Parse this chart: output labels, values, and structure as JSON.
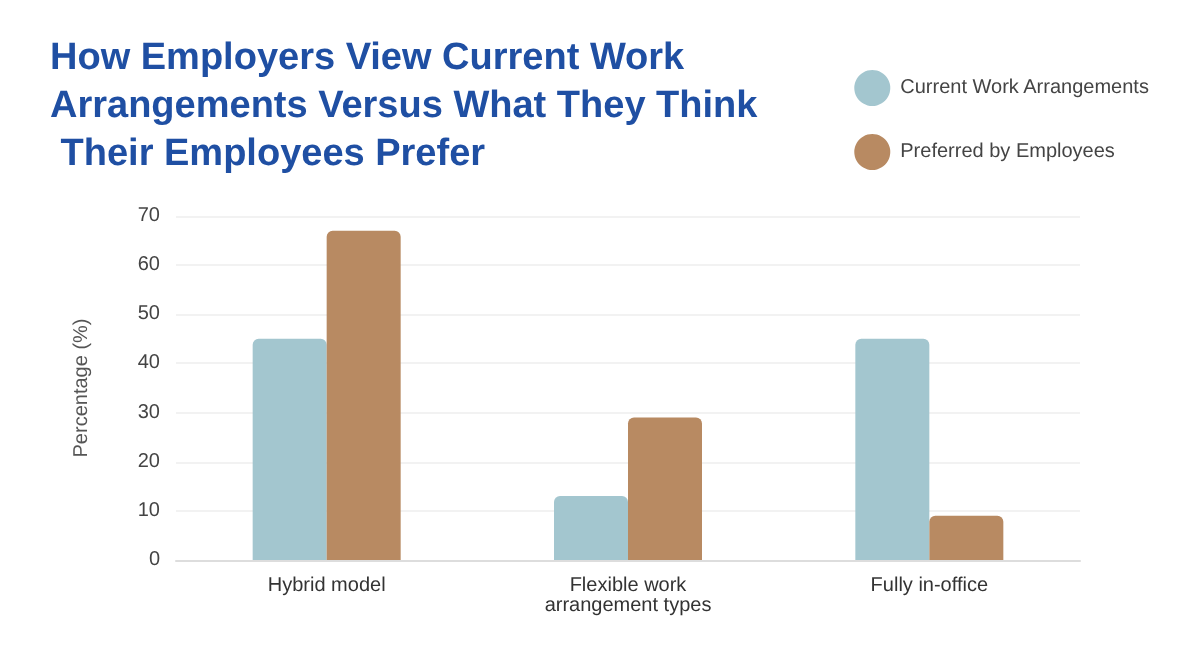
{
  "chart_data": {
    "type": "bar",
    "title": "How Employers View Current Work Arrangements Versus What They Think Their Employees Prefer",
    "ylabel": "Percentage (%)",
    "categories": [
      "Hybrid model",
      "Flexible work\narrangement types",
      "Fully in-office"
    ],
    "series": [
      {
        "name": "Current Work Arrangements",
        "color": "#a3c6cf",
        "values": [
          45,
          13,
          45
        ]
      },
      {
        "name": "Preferred by Employees",
        "color": "#b88a62",
        "values": [
          67,
          29,
          9
        ]
      }
    ],
    "ylim": [
      0,
      70
    ],
    "yticks": [
      0,
      10,
      20,
      30,
      40,
      50,
      60,
      70
    ],
    "grid": "y",
    "legend": "top right"
  }
}
